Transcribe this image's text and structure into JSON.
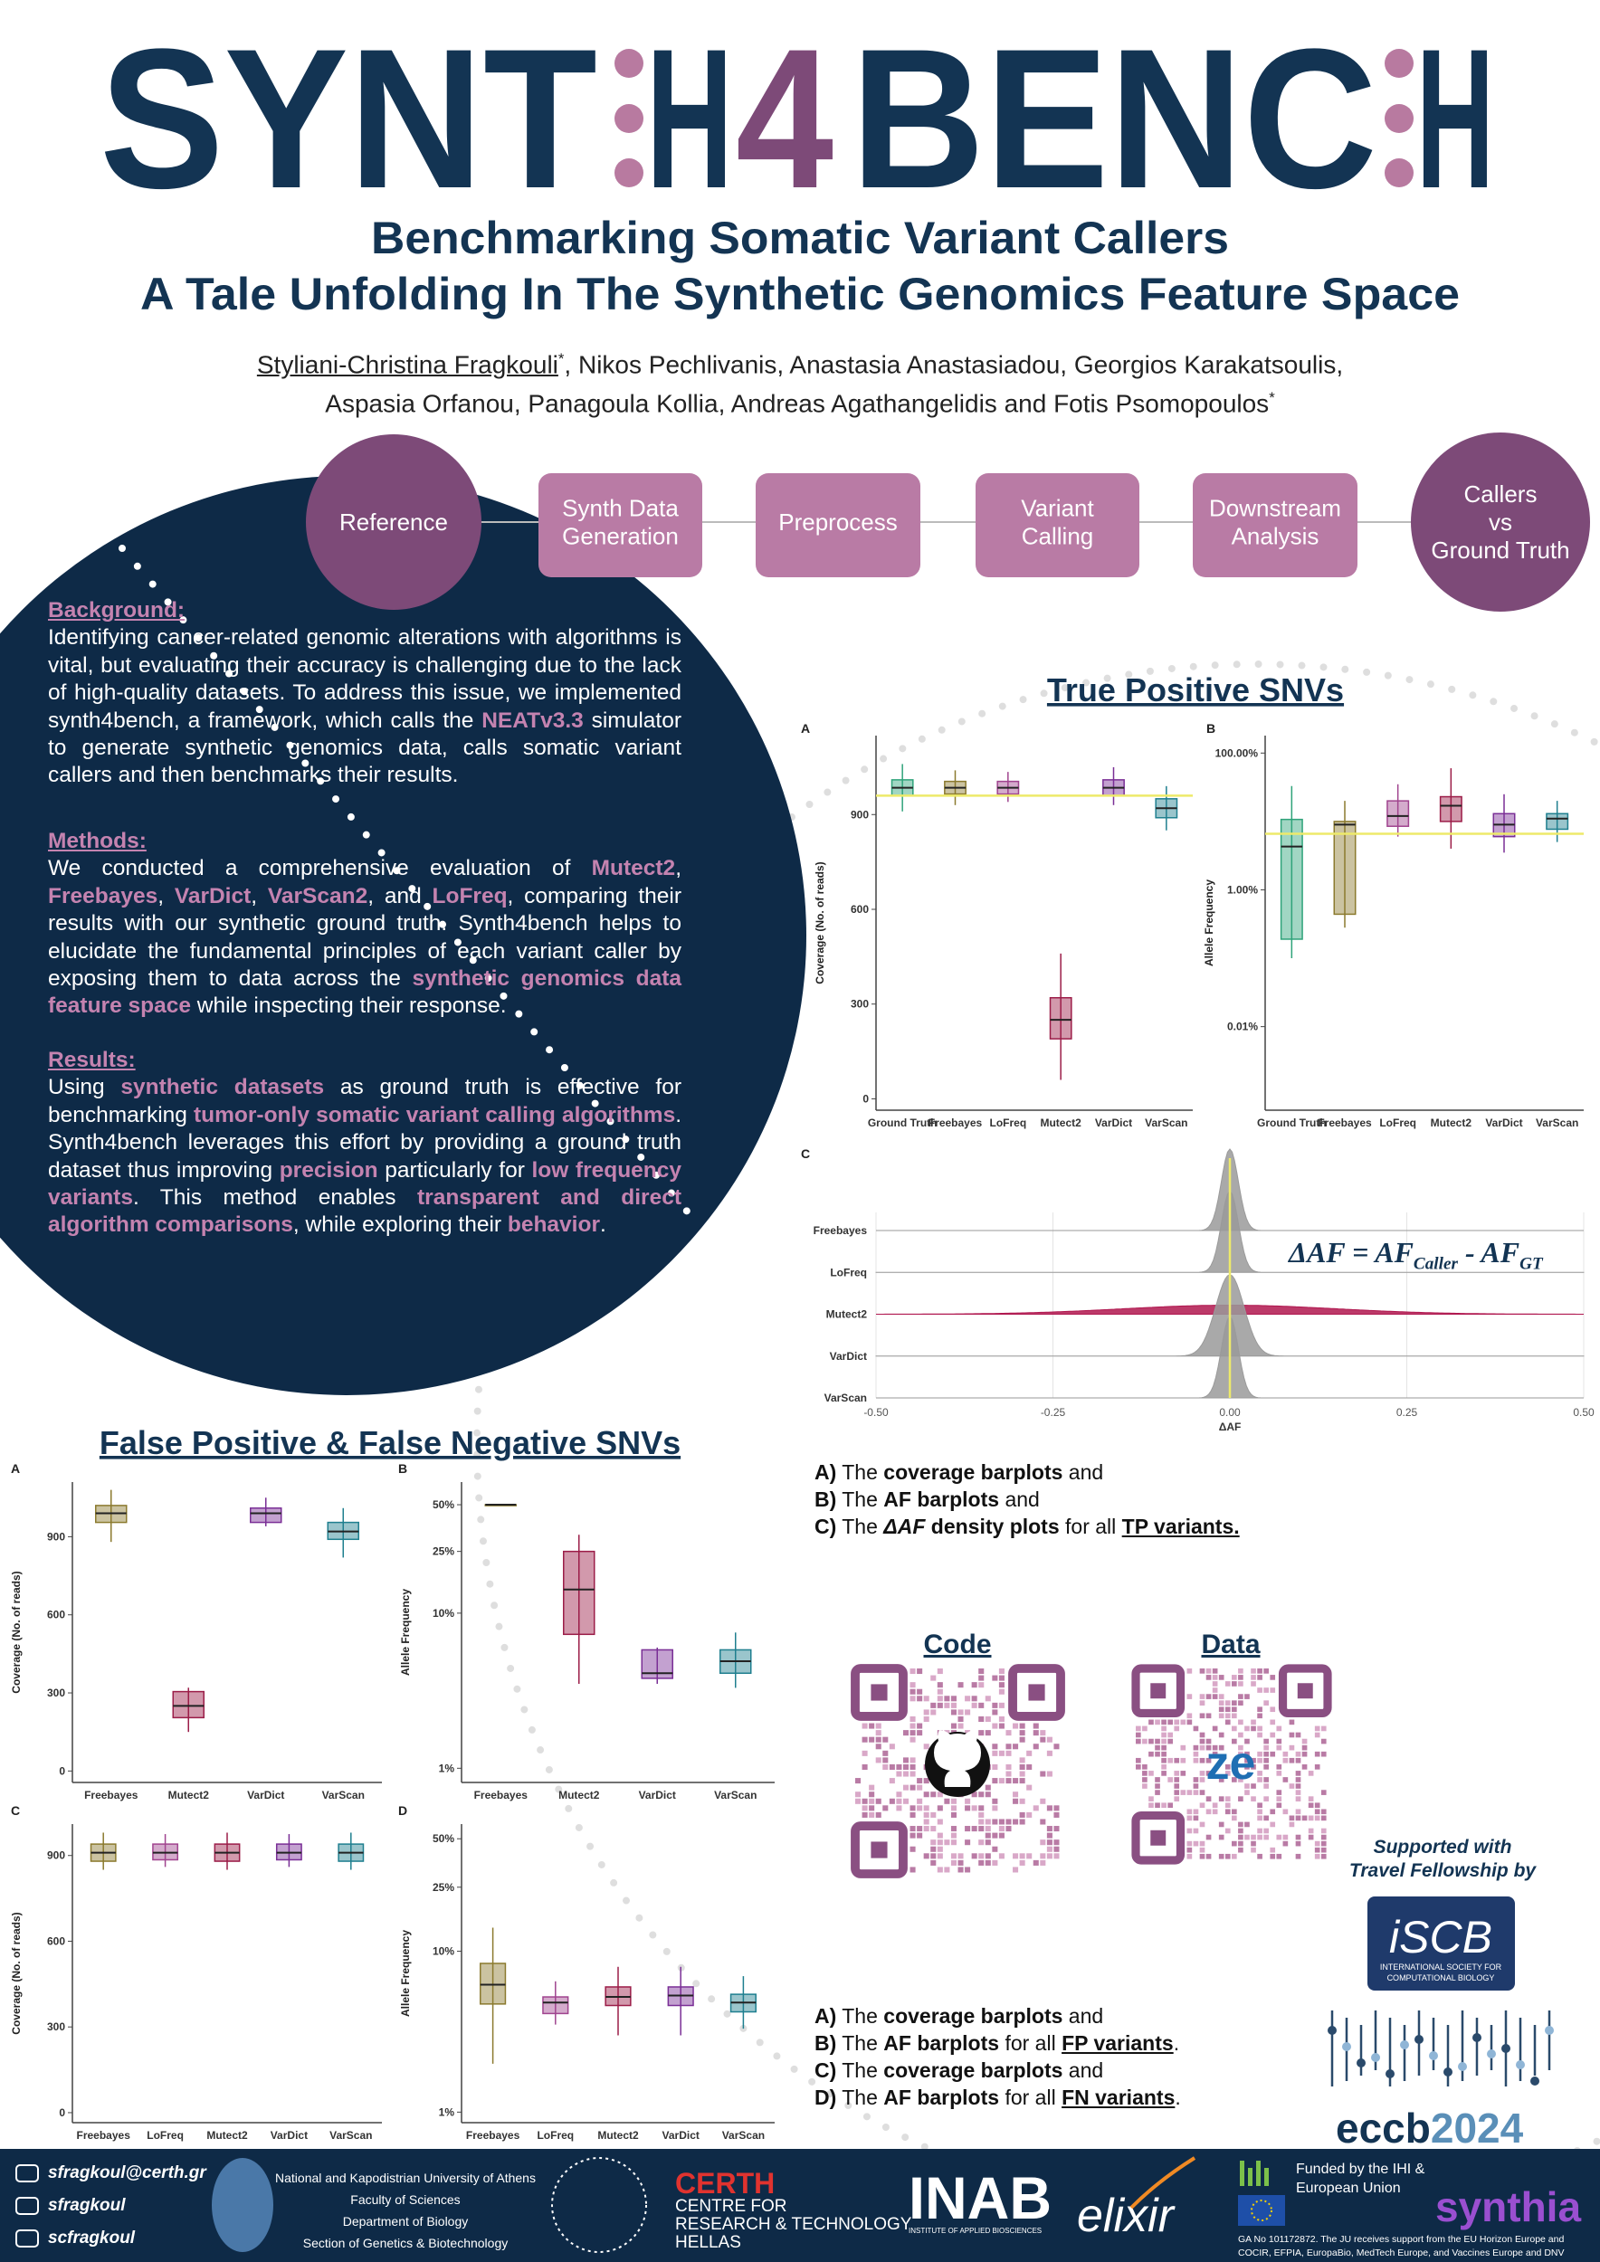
{
  "header": {
    "logo": [
      "SYNT",
      "H",
      "4",
      "BENC",
      "H"
    ],
    "subtitle": [
      "Benchmarking Somatic Variant Callers",
      "A Tale Unfolding In The Synthetic Genomics Feature Space"
    ],
    "authors": [
      [
        {
          "text": "Styliani-Christina Fragkouli",
          "underline": true
        },
        {
          "text": "*",
          "superscript": true
        },
        ", Nikos Pechlivanis, Anastasia Anastasiadou, Georgios Karakatsoulis,"
      ],
      [
        "Aspasia Orfanou, Panagoula Kollia, Andreas Agathangelidis and Fotis Psomopoulos",
        {
          "text": "*",
          "superscript": true
        }
      ]
    ]
  },
  "workflow": [
    [
      "Reference"
    ],
    [
      "Synth Data",
      "Generation"
    ],
    [
      "Preprocess"
    ],
    [
      "Variant",
      "Calling"
    ],
    [
      "Downstream",
      "Analysis"
    ],
    [
      "Callers",
      "vs",
      "Ground Truth"
    ]
  ],
  "sections": [
    {
      "heading": "Background:",
      "body": [
        "Identifying cancer-related genomic alterations with algorithms is vital, but evaluating their accuracy is challenging due to the lack of high-quality datasets. To address this issue, we implemented synth4bench, a framework, which calls the ",
        {
          "text": "NEATv3.3",
          "highlight": true
        },
        " simulator to generate synthetic genomics data, calls somatic variant callers and then benchmarks their results."
      ]
    },
    {
      "heading": "Methods:",
      "body": [
        "We conducted a comprehensive evaluation of ",
        {
          "text": "Mutect2",
          "highlight": true
        },
        ", ",
        {
          "text": "Freebayes",
          "highlight": true
        },
        ", ",
        {
          "text": "VarDict",
          "highlight": true
        },
        ", ",
        {
          "text": "VarScan2",
          "highlight": true
        },
        ", and ",
        {
          "text": "LoFreq",
          "highlight": true
        },
        ", comparing their results with our synthetic ground truth. Synth4bench helps to elucidate the fundamental principles of each variant caller by exposing them to data across the ",
        {
          "text": "synthetic genomics data feature space",
          "highlight": true
        },
        " while inspecting their response."
      ]
    },
    {
      "heading": "Results:",
      "body": [
        "Using ",
        {
          "text": "synthetic datasets",
          "highlight": true
        },
        " as ground truth is effective for benchmarking ",
        {
          "text": "tumor-only somatic variant calling algorithms",
          "highlight": true
        },
        ". Synth4bench leverages this effort by providing a ground truth dataset thus improving ",
        {
          "text": "precision",
          "highlight": true
        },
        " particularly for ",
        {
          "text": "low frequency variants",
          "highlight": true
        },
        ". This method enables ",
        {
          "text": "transparent and direct algorithm comparisons",
          "highlight": true
        },
        ", while exploring their ",
        {
          "text": "behavior",
          "highlight": true
        },
        "."
      ]
    }
  ],
  "tp": {
    "heading": "True Positive SNVs",
    "charts": [
      {
        "type": "box",
        "label": "A",
        "ylabel": "Coverage (No. of reads)",
        "log": false,
        "categories": [
          "Ground Truth",
          "Freebayes",
          "LoFreq",
          "Mutect2",
          "VarDict",
          "VarScan"
        ],
        "colors": [
          "#2fa37a",
          "#8b7a2e",
          "#a0448f",
          "#9b1d48",
          "#7a2f96",
          "#1f7f8f"
        ],
        "boxes": [
          [
            910,
            960,
            985,
            1010,
            1060
          ],
          [
            930,
            965,
            985,
            1005,
            1040
          ],
          [
            940,
            965,
            985,
            1005,
            1035
          ],
          [
            60,
            190,
            250,
            320,
            460
          ],
          [
            930,
            960,
            985,
            1010,
            1050
          ],
          [
            850,
            890,
            920,
            950,
            990
          ]
        ],
        "hline": 960,
        "ylim": [
          -36,
          1150
        ],
        "yticks": [
          0,
          300,
          600,
          900
        ]
      },
      {
        "type": "box",
        "label": "B",
        "ylabel": "Allele Frequency",
        "log": true,
        "categories": [
          "Ground Truth",
          "Freebayes",
          "LoFreq",
          "Mutect2",
          "VarDict",
          "VarScan"
        ],
        "colors": [
          "#2fa37a",
          "#8b7a2e",
          "#a0448f",
          "#9b1d48",
          "#7a2f96",
          "#1f7f8f"
        ],
        "boxes": [
          [
            0.1,
            0.19,
            4.3,
            10.7,
            33
          ],
          [
            0.28,
            0.44,
            9,
            10,
            20
          ],
          [
            6,
            8.5,
            12,
            20,
            35
          ],
          [
            4,
            10,
            17,
            23,
            60
          ],
          [
            3.5,
            6,
            9,
            13,
            25
          ],
          [
            5,
            7.7,
            11,
            13,
            20
          ]
        ],
        "hline": 6.6,
        "ylim": [
          0.0006,
          180
        ],
        "yticks": [
          {
            "value": 0.01,
            "label": "0.01%"
          },
          {
            "value": 1,
            "label": "1.00%"
          },
          {
            "value": 100,
            "label": "100.00%"
          }
        ]
      },
      {
        "type": "ridgeline",
        "label": "C",
        "xlabel": "ΔAF",
        "categories": [
          "Freebayes",
          "LoFreq",
          "Mutect2",
          "VarDict",
          "VarScan"
        ],
        "colors": [
          "#9a9a9a",
          "#9a9a9a",
          "#b0174f",
          "#9a9a9a",
          "#9a9a9a"
        ],
        "modes": [
          0,
          0,
          0,
          0,
          0
        ],
        "spreads": [
          0.012,
          0.012,
          0.15,
          0.02,
          0.012
        ],
        "vline": 0,
        "xlim": [
          -0.5,
          0.5
        ],
        "xticks": [
          {
            "value": -0.5,
            "label": "-0.50"
          },
          {
            "value": -0.25,
            "label": "-0.25"
          },
          {
            "value": 0,
            "label": "0.00"
          },
          {
            "value": 0.25,
            "label": "0.25"
          },
          {
            "value": 0.5,
            "label": "0.50"
          }
        ],
        "annotation": [
          "ΔAF",
          " = AF",
          {
            "text": "Caller",
            "subscript": true
          },
          " - AF",
          {
            "text": "GT",
            "subscript": true
          }
        ]
      }
    ],
    "caption": [
      [
        {
          "text": "A)",
          "bold": true
        },
        " The ",
        {
          "text": "coverage barplots",
          "bold": true
        },
        " and"
      ],
      [
        {
          "text": "B)",
          "bold": true
        },
        " The ",
        {
          "text": "AF barplots",
          "bold": true
        },
        " and"
      ],
      [
        {
          "text": "C)",
          "bold": true
        },
        " The ",
        {
          "text": "ΔAF",
          "bold": true,
          "italic": true
        },
        {
          "text": " density plots",
          "bold": true
        },
        " for all ",
        {
          "text": "TP variants.",
          "bold": true,
          "underline": true
        }
      ]
    ]
  },
  "fpfn": {
    "heading": "False Positive & False Negative SNVs",
    "charts": [
      {
        "type": "box",
        "label": "A",
        "ylabel": "Coverage (No. of reads)",
        "log": false,
        "categories": [
          "Freebayes",
          "Mutect2",
          "VarDict",
          "VarScan"
        ],
        "colors": [
          "#8b7a2e",
          "#9b1d48",
          "#7a2f96",
          "#1f7f8f"
        ],
        "boxes": [
          [
            880,
            955,
            990,
            1020,
            1080
          ],
          [
            150,
            205,
            250,
            305,
            320
          ],
          [
            940,
            955,
            990,
            1010,
            1050
          ],
          [
            820,
            890,
            920,
            955,
            1010
          ]
        ],
        "ylim": [
          -44,
          1110
        ],
        "yticks": [
          0,
          300,
          600,
          900
        ]
      },
      {
        "type": "box",
        "label": "B",
        "ylabel": "Allele Frequency",
        "log": true,
        "categories": [
          "Freebayes",
          "Mutect2",
          "VarDict",
          "VarScan"
        ],
        "colors": [
          "#8b7a2e",
          "#9b1d48",
          "#7a2f96",
          "#1f7f8f"
        ],
        "boxes": [
          [
            50,
            50,
            50,
            50,
            50
          ],
          [
            3.5,
            7.3,
            14.2,
            25,
            32
          ],
          [
            3.5,
            3.8,
            4.1,
            5.8,
            6
          ],
          [
            3.3,
            4.1,
            4.9,
            5.8,
            7.5
          ]
        ],
        "ylim": [
          0.81,
          70
        ],
        "yticks": [
          {
            "value": 1,
            "label": "1%"
          },
          {
            "value": 10,
            "label": "10%"
          },
          {
            "value": 25,
            "label": "25%"
          },
          {
            "value": 50,
            "label": "50%"
          }
        ]
      },
      {
        "type": "box",
        "label": "C",
        "ylabel": "Coverage (No. of reads)",
        "log": false,
        "categories": [
          "Freebayes",
          "LoFreq",
          "Mutect2",
          "VarDict",
          "VarScan"
        ],
        "colors": [
          "#8b7a2e",
          "#a0448f",
          "#9b1d48",
          "#7a2f96",
          "#1f7f8f"
        ],
        "boxes": [
          [
            850,
            880,
            910,
            940,
            980
          ],
          [
            860,
            885,
            910,
            940,
            975
          ],
          [
            850,
            880,
            910,
            940,
            980
          ],
          [
            860,
            885,
            910,
            940,
            975
          ],
          [
            850,
            880,
            910,
            940,
            980
          ]
        ],
        "ylim": [
          -35,
          1010
        ],
        "yticks": [
          0,
          300,
          600,
          900
        ]
      },
      {
        "type": "box",
        "label": "D",
        "ylabel": "Allele Frequency",
        "log": true,
        "categories": [
          "Freebayes",
          "LoFreq",
          "Mutect2",
          "VarDict",
          "VarScan"
        ],
        "colors": [
          "#8b7a2e",
          "#a0448f",
          "#9b1d48",
          "#7a2f96",
          "#1f7f8f"
        ],
        "boxes": [
          [
            2,
            4.7,
            6.2,
            8.4,
            14
          ],
          [
            3.5,
            4.1,
            4.8,
            5.2,
            6.5
          ],
          [
            3,
            4.6,
            5.2,
            6,
            8
          ],
          [
            3,
            4.6,
            5.3,
            6,
            8
          ],
          [
            3.3,
            4.2,
            4.8,
            5.4,
            7
          ]
        ],
        "ylim": [
          0.86,
          61.7
        ],
        "yticks": [
          {
            "value": 1,
            "label": "1%"
          },
          {
            "value": 10,
            "label": "10%"
          },
          {
            "value": 25,
            "label": "25%"
          },
          {
            "value": 50,
            "label": "50%"
          }
        ]
      }
    ],
    "caption": [
      [
        {
          "text": "A)",
          "bold": true
        },
        " The ",
        {
          "text": "coverage barplots",
          "bold": true
        },
        " and"
      ],
      [
        {
          "text": "B)",
          "bold": true
        },
        " The ",
        {
          "text": "AF barplots",
          "bold": true
        },
        " for all ",
        {
          "text": "FP variants",
          "bold": true,
          "underline": true
        },
        "."
      ],
      [
        {
          "text": "C)",
          "bold": true
        },
        " The ",
        {
          "text": "coverage barplots",
          "bold": true
        },
        " and"
      ],
      [
        {
          "text": "D)",
          "bold": true
        },
        " The ",
        {
          "text": "AF barplots",
          "bold": true
        },
        " for all ",
        {
          "text": "FN variants",
          "bold": true,
          "underline": true
        },
        "."
      ]
    ]
  },
  "links": {
    "code": "Code",
    "data": "Data",
    "data_logo": "ze"
  },
  "support": {
    "lines": [
      "Supported with",
      "Travel Fellowship by"
    ],
    "iscb": "iSCB",
    "iscb_text": [
      "INTERNATIONAL SOCIETY FOR",
      "COMPUTATIONAL BIOLOGY"
    ],
    "eccb": [
      "eccb",
      "2024"
    ]
  },
  "footer": {
    "contacts": [
      "sfragkoul@certh.gr",
      "sfragkoul",
      "scfragkoul"
    ],
    "university": [
      "National and Kapodistrian University of Athens",
      "Faculty of Sciences",
      "Department of Biology",
      "Section of Genetics & Biotechnology"
    ],
    "certh": [
      "CERTH",
      "CENTRE FOR",
      "RESEARCH & TECHNOLOGY",
      "HELLAS"
    ],
    "inab": [
      "INAB",
      "INSTITUTE OF APPLIED BIOSCIENCES"
    ],
    "elixir": "elixir",
    "funding": [
      "Funded by the IHI &",
      "European Union"
    ],
    "funding_note": [
      "GA No 101172872. The JU receives support from the EU Horizon Europe and",
      "COCIR, EFPIA, EuropaBio, MedTech Europe, and Vaccines Europe and DNV"
    ],
    "synthia": "synthia"
  }
}
